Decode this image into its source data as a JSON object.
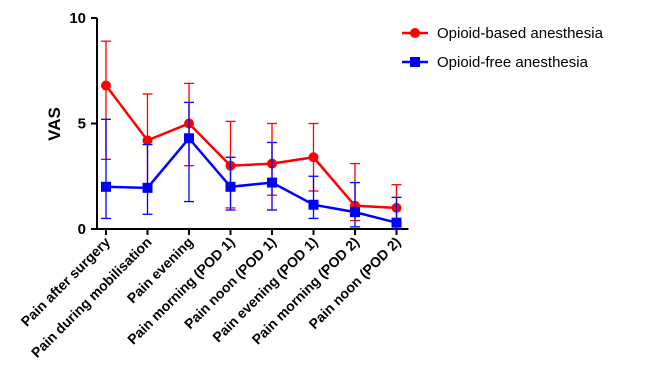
{
  "chart_data": {
    "type": "line",
    "title": "",
    "xlabel": "",
    "ylabel": "VAS",
    "ylim": [
      0,
      10
    ],
    "yticks": [
      0,
      5,
      10
    ],
    "legend_position": "top-right",
    "grid": false,
    "categories": [
      "Pain after surgery",
      "Pain during mobilisation",
      "Pain evening",
      "Pain morning (POD 1)",
      "Pain noon (POD 1)",
      "Pain evening (POD 1)",
      "Pain morning (POD 2)",
      "Pain noon (POD 2)"
    ],
    "series": [
      {
        "name": "Opioid-based anesthesia",
        "color": "#ff0000",
        "marker": "circle",
        "values": [
          6.8,
          4.2,
          5.0,
          3.0,
          3.1,
          3.4,
          1.1,
          1.0
        ],
        "error_low": [
          3.3,
          1.8,
          3.0,
          1.0,
          1.6,
          1.8,
          0.4,
          0.3
        ],
        "error_high": [
          8.9,
          6.4,
          6.9,
          5.1,
          5.0,
          5.0,
          3.1,
          2.1
        ]
      },
      {
        "name": "Opioid-free anesthesia",
        "color": "#0000ff",
        "marker": "square",
        "values": [
          2.0,
          1.95,
          4.3,
          2.0,
          2.2,
          1.15,
          0.8,
          0.3
        ],
        "error_low": [
          0.5,
          0.7,
          1.3,
          0.9,
          0.9,
          0.5,
          0.1,
          0.0
        ],
        "error_high": [
          5.2,
          4.0,
          6.0,
          3.4,
          4.1,
          2.5,
          2.2,
          1.5
        ]
      }
    ]
  }
}
